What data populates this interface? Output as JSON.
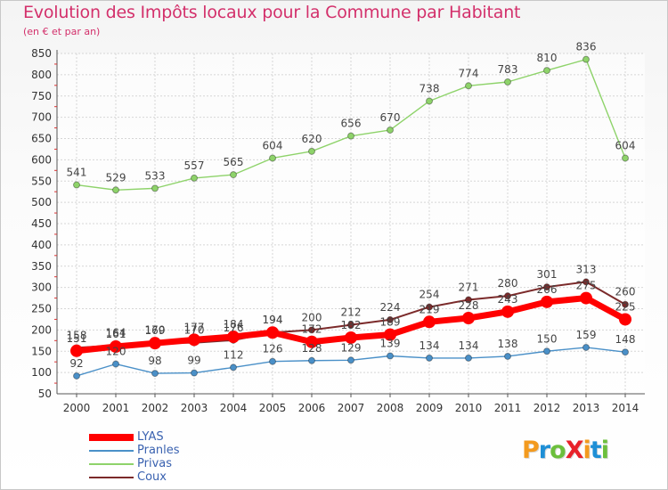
{
  "title": "Evolution des Impôts locaux pour la Commune par Habitant",
  "subtitle": "(en € et par an)",
  "logo": "ProXiti",
  "chart_data": {
    "type": "line",
    "x": [
      "2000",
      "2001",
      "2002",
      "2003",
      "2004",
      "2005",
      "2006",
      "2007",
      "2008",
      "2009",
      "2010",
      "2011",
      "2012",
      "2013",
      "2014"
    ],
    "ylim": [
      50,
      850
    ],
    "yticks": [
      50,
      100,
      150,
      200,
      250,
      300,
      350,
      400,
      450,
      500,
      550,
      600,
      650,
      700,
      750,
      800,
      850
    ],
    "grid": true,
    "legend_position": "bottom-left",
    "series": [
      {
        "name": "LYAS",
        "color": "#ff0000",
        "values": [
          151,
          161,
          169,
          177,
          184,
          194,
          172,
          182,
          189,
          219,
          228,
          243,
          266,
          275,
          225
        ]
      },
      {
        "name": "Pranles",
        "color": "#4a90c8",
        "values": [
          92,
          120,
          98,
          99,
          112,
          126,
          128,
          129,
          139,
          134,
          134,
          138,
          150,
          159,
          148
        ]
      },
      {
        "name": "Privas",
        "color": "#8ed36a",
        "values": [
          541,
          529,
          533,
          557,
          565,
          604,
          620,
          656,
          670,
          738,
          774,
          783,
          810,
          836,
          604
        ]
      },
      {
        "name": "Coux",
        "color": "#7b2a2a",
        "values": [
          158,
          164,
          170,
          170,
          176,
          194,
          200,
          212,
          224,
          254,
          271,
          280,
          301,
          313,
          260
        ]
      }
    ]
  }
}
